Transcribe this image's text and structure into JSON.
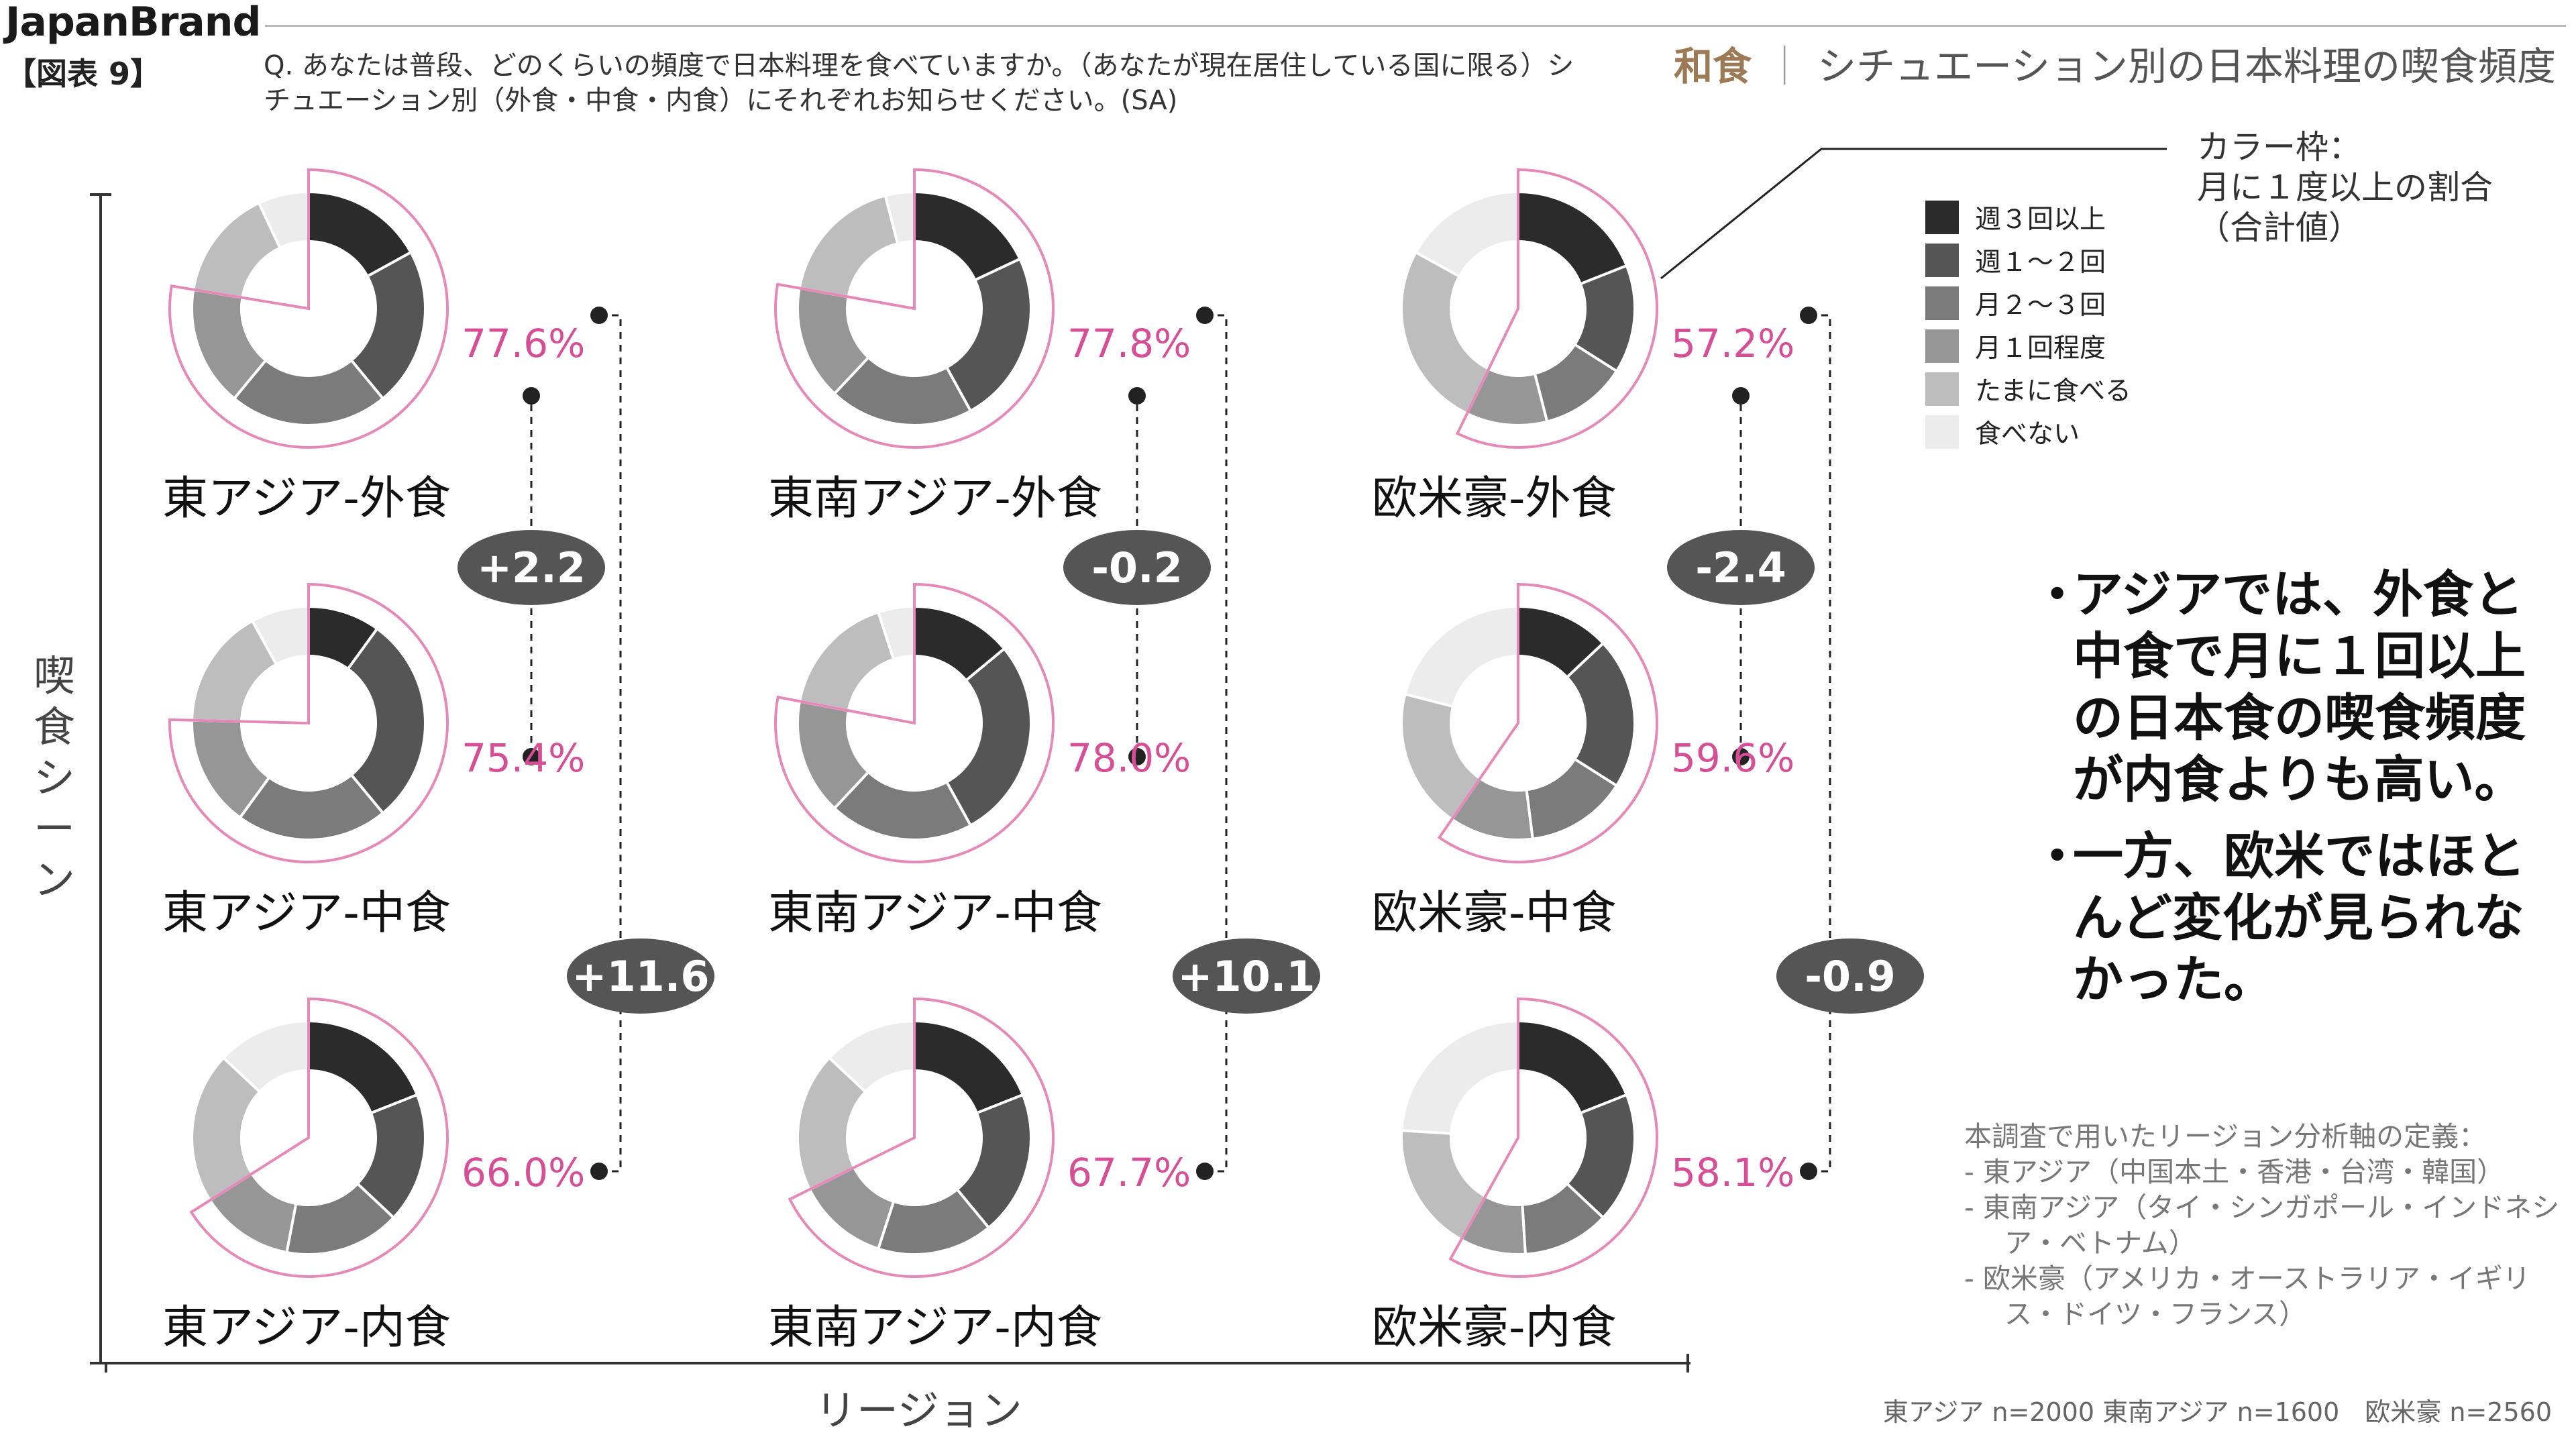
{
  "header": {
    "brand": "JapanBrand",
    "figure_no": "【図表 9】",
    "question": "Q. あなたは普段、どのくらいの頻度で日本料理を食べていますか。（あなたが現在居住している国に限る）シチュエーション別（外食・中食・内食）にそれぞれお知らせください。(SA)",
    "kicker_wa": "和食",
    "kicker_sep": "｜",
    "kicker_title": "シチュエーション別の日本料理の喫食頻度"
  },
  "frame_note": [
    "カラー枠：",
    "月に１度以上の割合",
    "（合計値）"
  ],
  "bullets": [
    "アジアでは、外食と中食で月に１回以上の日本食の喫食頻度が内食よりも高い。",
    "一方、欧米ではほとんど変化が見られなかった。"
  ],
  "definitions": {
    "title": "本調査で用いたリージョン分析軸の定義：",
    "items": [
      "-  東アジア（中国本土・香港・台湾・韓国）",
      "-  東南アジア（タイ・シンガポール・インドネシア・ベトナム）",
      "-  欧米豪（アメリカ・オーストラリア・イギリス・ドイツ・フランス）"
    ]
  },
  "sample": "東アジア n=2000  東南アジア n=1600　欧米豪 n=2560",
  "axis": {
    "y_label": "喫食シーン",
    "x_label": "リージョン"
  },
  "colors": {
    "frame": "#e58ab8",
    "percent_text": "#d64f96",
    "badge": "#555555",
    "connector": "#222222"
  },
  "chart_data": {
    "type": "donut",
    "segments": [
      {
        "name": "週３回以上",
        "color": "#2b2b2b"
      },
      {
        "name": "週１～２回",
        "color": "#555555"
      },
      {
        "name": "月２～３回",
        "color": "#7b7b7b"
      },
      {
        "name": "月１回程度",
        "color": "#969696"
      },
      {
        "name": "たまに食べる",
        "color": "#bdbdbd"
      },
      {
        "name": "食べない",
        "color": "#ececec"
      }
    ],
    "regions": [
      "東アジア",
      "東南アジア",
      "欧米豪"
    ],
    "scenes": [
      "外食",
      "中食",
      "内食"
    ],
    "charts": [
      {
        "label": "東アジア-外食",
        "region": 0,
        "scene": 0,
        "monthly_pct": "77.6%",
        "values": [
          17,
          22,
          22,
          16.6,
          15.4,
          7
        ]
      },
      {
        "label": "東アジア-中食",
        "region": 0,
        "scene": 1,
        "monthly_pct": "75.4%",
        "values": [
          10,
          29,
          21,
          15.4,
          16.6,
          8
        ]
      },
      {
        "label": "東アジア-内食",
        "region": 0,
        "scene": 2,
        "monthly_pct": "66.0%",
        "values": [
          19,
          18,
          16,
          13,
          21,
          13
        ]
      },
      {
        "label": "東南アジア-外食",
        "region": 1,
        "scene": 0,
        "monthly_pct": "77.8%",
        "values": [
          18,
          24,
          20,
          15.8,
          18.2,
          4
        ]
      },
      {
        "label": "東南アジア-中食",
        "region": 1,
        "scene": 1,
        "monthly_pct": "78.0%",
        "values": [
          14,
          28,
          20,
          16,
          17,
          5
        ]
      },
      {
        "label": "東南アジア-内食",
        "region": 1,
        "scene": 2,
        "monthly_pct": "67.7%",
        "values": [
          19,
          20,
          16,
          12.7,
          19.3,
          13
        ]
      },
      {
        "label": "欧米豪-外食",
        "region": 2,
        "scene": 0,
        "monthly_pct": "57.2%",
        "values": [
          19,
          15,
          12,
          11.2,
          25.8,
          17
        ]
      },
      {
        "label": "欧米豪-中食",
        "region": 2,
        "scene": 1,
        "monthly_pct": "59.6%",
        "values": [
          13,
          21,
          14,
          11.6,
          19.4,
          21
        ]
      },
      {
        "label": "欧米豪-内食",
        "region": 2,
        "scene": 2,
        "monthly_pct": "58.1%",
        "values": [
          19,
          18,
          12,
          9.1,
          17.9,
          24
        ]
      }
    ],
    "differences": [
      {
        "region": 0,
        "pair": "外食-中食",
        "value": "+2.2"
      },
      {
        "region": 1,
        "pair": "外食-中食",
        "value": "-0.2"
      },
      {
        "region": 2,
        "pair": "外食-中食",
        "value": "-2.4"
      },
      {
        "region": 0,
        "pair": "外食-内食",
        "value": "+11.6"
      },
      {
        "region": 1,
        "pair": "外食-内食",
        "value": "+10.1"
      },
      {
        "region": 2,
        "pair": "外食-内食",
        "value": "-0.9"
      }
    ]
  }
}
